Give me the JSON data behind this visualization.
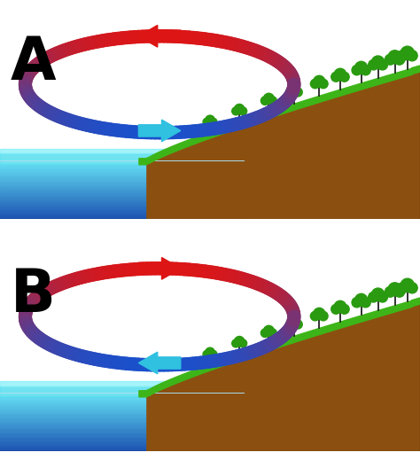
{
  "panel_A_label": "A",
  "panel_B_label": "B",
  "bg_color": "#ffffff",
  "land_color": "#8B5010",
  "land_side_color": "#6b3a08",
  "grass_color": "#3db518",
  "tree_foliage_color": "#2a9a10",
  "arrow_red": "#dd1515",
  "arrow_blue": "#1a50cc",
  "arrow_cyan": "#30c0e0",
  "loop_linewidth": 11,
  "label_fontsize": 48,
  "sea_top_color": "#60d8f0",
  "sea_bot_color": "#1a50b0",
  "sea_dark": "#1a50b0",
  "sea_light": "#60d8f0"
}
